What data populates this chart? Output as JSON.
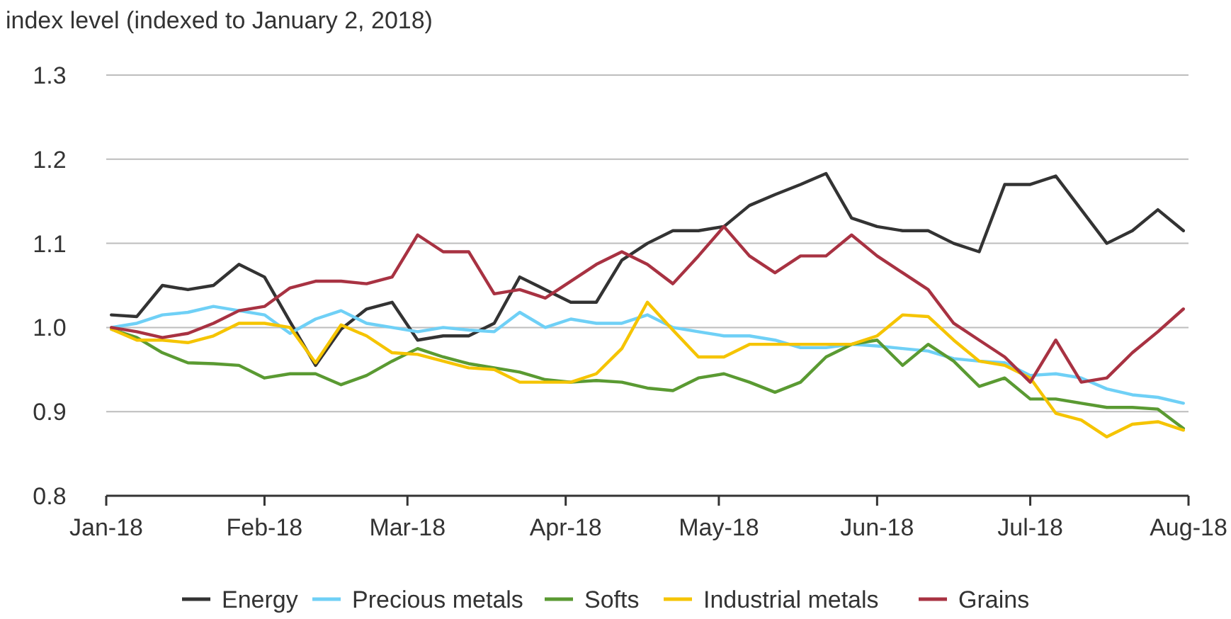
{
  "chart_data": {
    "type": "line",
    "ylabel": "index level (indexed to January 2, 2018)",
    "x": [
      "2018-01-02",
      "2018-01-07",
      "2018-01-12",
      "2018-01-17",
      "2018-01-22",
      "2018-01-27",
      "2018-02-01",
      "2018-02-06",
      "2018-02-11",
      "2018-02-16",
      "2018-02-21",
      "2018-02-26",
      "2018-03-03",
      "2018-03-08",
      "2018-03-13",
      "2018-03-18",
      "2018-03-23",
      "2018-03-28",
      "2018-04-02",
      "2018-04-07",
      "2018-04-12",
      "2018-04-17",
      "2018-04-22",
      "2018-04-27",
      "2018-05-02",
      "2018-05-07",
      "2018-05-12",
      "2018-05-17",
      "2018-05-22",
      "2018-05-27",
      "2018-06-01",
      "2018-06-06",
      "2018-06-11",
      "2018-06-16",
      "2018-06-21",
      "2018-06-26",
      "2018-07-01",
      "2018-07-06",
      "2018-07-11",
      "2018-07-16",
      "2018-07-21",
      "2018-07-26",
      "2018-07-31"
    ],
    "series": [
      {
        "name": "Energy",
        "color": "#333333",
        "values": [
          1.015,
          1.013,
          1.05,
          1.045,
          1.05,
          1.075,
          1.06,
          1.007,
          0.955,
          0.998,
          1.022,
          1.03,
          0.985,
          0.99,
          0.99,
          1.005,
          1.06,
          1.045,
          1.03,
          1.03,
          1.08,
          1.1,
          1.115,
          1.115,
          1.12,
          1.145,
          1.158,
          1.17,
          1.183,
          1.13,
          1.12,
          1.115,
          1.115,
          1.1,
          1.09,
          1.17,
          1.17,
          1.18,
          1.14,
          1.1,
          1.115,
          1.14,
          1.115
        ]
      },
      {
        "name": "Precious metals",
        "color": "#6fd0f6",
        "values": [
          1.0,
          1.005,
          1.015,
          1.018,
          1.025,
          1.02,
          1.015,
          0.993,
          1.01,
          1.02,
          1.005,
          1.0,
          0.995,
          1.0,
          0.997,
          0.995,
          1.018,
          1.0,
          1.01,
          1.005,
          1.005,
          1.015,
          1.0,
          0.995,
          0.99,
          0.99,
          0.985,
          0.976,
          0.976,
          0.98,
          0.978,
          0.975,
          0.972,
          0.963,
          0.96,
          0.958,
          0.943,
          0.945,
          0.94,
          0.927,
          0.92,
          0.917,
          0.91
        ]
      },
      {
        "name": "Softs",
        "color": "#5a9a32",
        "values": [
          0.998,
          0.988,
          0.97,
          0.958,
          0.957,
          0.955,
          0.94,
          0.945,
          0.945,
          0.932,
          0.943,
          0.96,
          0.975,
          0.965,
          0.957,
          0.952,
          0.947,
          0.938,
          0.935,
          0.937,
          0.935,
          0.928,
          0.925,
          0.94,
          0.945,
          0.935,
          0.923,
          0.935,
          0.965,
          0.98,
          0.985,
          0.955,
          0.98,
          0.96,
          0.93,
          0.94,
          0.915,
          0.915,
          0.91,
          0.905,
          0.905,
          0.903,
          0.88
        ]
      },
      {
        "name": "Industrial metals",
        "color": "#f5c400",
        "values": [
          0.998,
          0.985,
          0.985,
          0.982,
          0.99,
          1.005,
          1.005,
          1.0,
          0.958,
          1.003,
          0.99,
          0.97,
          0.968,
          0.96,
          0.952,
          0.95,
          0.935,
          0.935,
          0.935,
          0.945,
          0.975,
          1.03,
          0.997,
          0.965,
          0.965,
          0.98,
          0.98,
          0.98,
          0.98,
          0.98,
          0.99,
          1.015,
          1.013,
          0.985,
          0.96,
          0.955,
          0.94,
          0.898,
          0.89,
          0.87,
          0.885,
          0.888,
          0.878
        ]
      },
      {
        "name": "Grains",
        "color": "#a83242",
        "values": [
          1.0,
          0.995,
          0.988,
          0.993,
          1.005,
          1.02,
          1.025,
          1.047,
          1.055,
          1.055,
          1.052,
          1.06,
          1.11,
          1.09,
          1.09,
          1.04,
          1.045,
          1.035,
          1.055,
          1.075,
          1.09,
          1.075,
          1.052,
          1.085,
          1.12,
          1.085,
          1.065,
          1.085,
          1.085,
          1.11,
          1.085,
          1.065,
          1.045,
          1.005,
          0.985,
          0.965,
          0.935,
          0.985,
          0.935,
          0.94,
          0.97,
          0.995,
          1.022
        ]
      }
    ],
    "xlim": [
      "2018-01-01",
      "2018-08-01"
    ],
    "xticks": [
      {
        "value": "2018-01-01",
        "label": "Jan-18"
      },
      {
        "value": "2018-02-01",
        "label": "Feb-18"
      },
      {
        "value": "2018-03-01",
        "label": "Mar-18"
      },
      {
        "value": "2018-04-01",
        "label": "Apr-18"
      },
      {
        "value": "2018-05-01",
        "label": "May-18"
      },
      {
        "value": "2018-06-01",
        "label": "Jun-18"
      },
      {
        "value": "2018-07-01",
        "label": "Jul-18"
      },
      {
        "value": "2018-08-01",
        "label": "Aug-18"
      }
    ],
    "ylim": [
      0.8,
      1.3
    ],
    "yticks": [
      {
        "value": 0.8,
        "label": "0.8"
      },
      {
        "value": 0.9,
        "label": "0.9"
      },
      {
        "value": 1.0,
        "label": "1.0"
      },
      {
        "value": 1.1,
        "label": "1.1"
      },
      {
        "value": 1.2,
        "label": "1.2"
      },
      {
        "value": 1.3,
        "label": "1.3"
      }
    ],
    "grid": "y",
    "legend": "bottom",
    "marker": "none",
    "line_style": "solid"
  }
}
